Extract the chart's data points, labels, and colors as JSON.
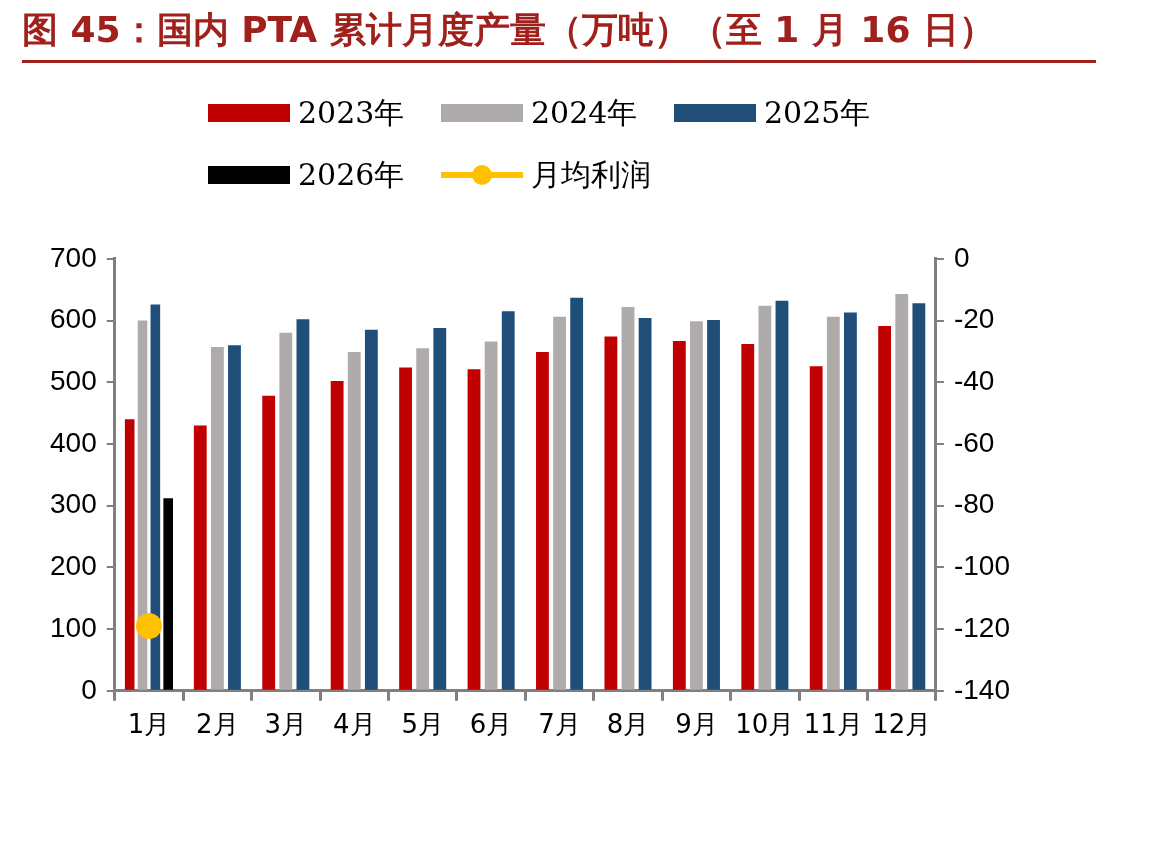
{
  "chart_data": {
    "type": "bar",
    "title": "图 45：国内 PTA 累计月度产量（万吨）（至 1 月 16 日）",
    "categories": [
      "1月",
      "2月",
      "3月",
      "4月",
      "5月",
      "6月",
      "7月",
      "8月",
      "9月",
      "10月",
      "11月",
      "12月"
    ],
    "series": [
      {
        "name": "2023年",
        "color": "#c00000",
        "values": [
          440,
          430,
          478,
          502,
          524,
          521,
          549,
          574,
          567,
          562,
          526,
          591
        ]
      },
      {
        "name": "2024年",
        "color": "#afabab",
        "values": [
          600,
          557,
          580,
          549,
          555,
          566,
          606,
          622,
          599,
          624,
          606,
          643
        ]
      },
      {
        "name": "2025年",
        "color": "#1f4e79",
        "values": [
          626,
          560,
          602,
          585,
          588,
          615,
          637,
          604,
          601,
          632,
          613,
          628
        ]
      },
      {
        "name": "2026年",
        "color": "#000000",
        "values": [
          312,
          null,
          null,
          null,
          null,
          null,
          null,
          null,
          null,
          null,
          null,
          null
        ]
      },
      {
        "name": "月均利润",
        "color": "#ffc000",
        "type": "line",
        "axis": "y2",
        "marker": "circle",
        "values": [
          -119,
          null,
          null,
          null,
          null,
          null,
          null,
          null,
          null,
          null,
          null,
          null
        ]
      }
    ],
    "ylim": [
      0,
      700
    ],
    "yticks": [
      0,
      100,
      200,
      300,
      400,
      500,
      600,
      700
    ],
    "y2lim": [
      -140,
      0
    ],
    "y2ticks": [
      -140,
      -120,
      -100,
      -80,
      -60,
      -40,
      -20,
      0
    ],
    "grid": false,
    "legend": "top"
  }
}
